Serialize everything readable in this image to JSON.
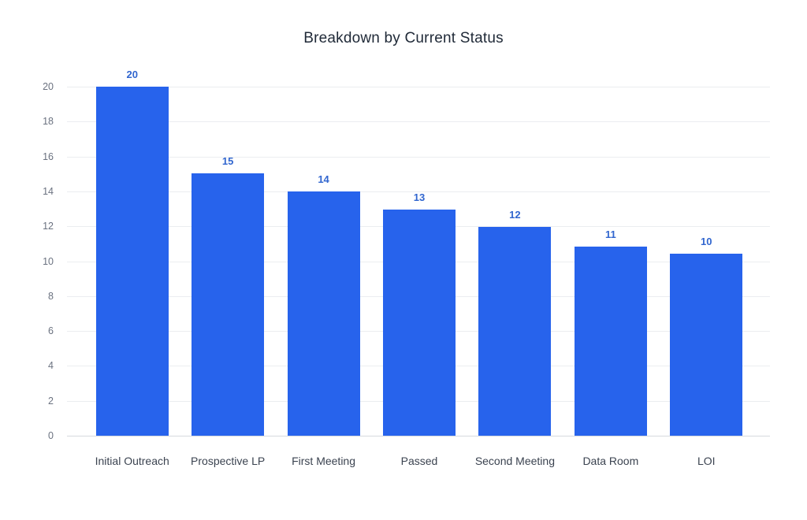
{
  "chart_data": {
    "type": "bar",
    "title": "Breakdown by Current Status",
    "categories": [
      "Initial Outreach",
      "Prospective LP",
      "First Meeting",
      "Passed",
      "Second Meeting",
      "Data Room",
      "LOI"
    ],
    "values": [
      20,
      15,
      14,
      13,
      12,
      11,
      10
    ],
    "display_heights": [
      20,
      15.05,
      14,
      12.95,
      11.95,
      10.85,
      10.45
    ],
    "xlabel": "",
    "ylabel": "",
    "ylim": [
      0,
      20
    ],
    "yticks": [
      0,
      2,
      4,
      6,
      8,
      10,
      12,
      14,
      16,
      18,
      20
    ],
    "grid": true,
    "legend_position": "none",
    "colors": {
      "bar": "#2763ec",
      "value_label": "#3166cf",
      "title": "#1f2937",
      "y_tick_text": "#6b7280",
      "category_text": "#3b4350",
      "gridline": "#ebedf0",
      "baseline": "#d5d9de",
      "background": "#ffffff"
    }
  }
}
